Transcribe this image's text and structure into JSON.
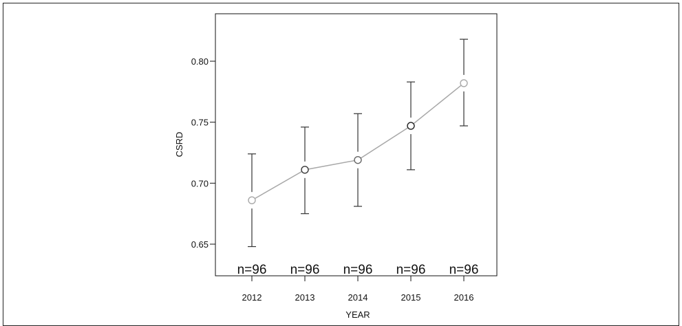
{
  "chart_data": {
    "type": "line",
    "xlabel": "YEAR",
    "ylabel": "CSRD",
    "ylim": [
      0.63,
      0.84
    ],
    "yticks": [
      0.65,
      0.7,
      0.75,
      0.8
    ],
    "ytick_labels": [
      "0.65",
      "0.70",
      "0.75",
      "0.80"
    ],
    "categories": [
      "2012",
      "2013",
      "2014",
      "2015",
      "2016"
    ],
    "series": [
      {
        "values": [
          0.686,
          0.711,
          0.719,
          0.747,
          0.782
        ],
        "error_low": [
          0.648,
          0.675,
          0.681,
          0.711,
          0.747
        ],
        "error_high": [
          0.724,
          0.746,
          0.757,
          0.783,
          0.818
        ],
        "marker_colors": [
          "#a8a8a8",
          "#3a3a3a",
          "#666666",
          "#222222",
          "#a8a8a8"
        ]
      }
    ],
    "n_labels": [
      "n=96",
      "n=96",
      "n=96",
      "n=96",
      "n=96"
    ],
    "line_color": "#a8a8a8",
    "errorbar_color": "#333333",
    "grid": false
  }
}
